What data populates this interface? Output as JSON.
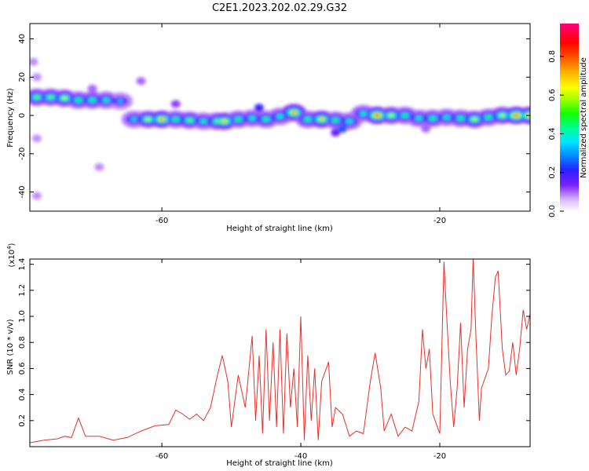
{
  "title": "C2E1.2023.202.02.29.G32",
  "chart_data": [
    {
      "type": "heatmap",
      "xlabel": "Height of straight line (km)",
      "ylabel": "Frequency (Hz)",
      "xlim": [
        -79,
        -7
      ],
      "ylim": [
        -50,
        48
      ],
      "xticks": [
        -60,
        -20
      ],
      "yticks": [
        -40,
        -20,
        0,
        20,
        40
      ],
      "colorbar": {
        "label": "Normalized spectral amplitude",
        "range": [
          0.0,
          0.97
        ],
        "ticks": [
          0.0,
          0.2,
          0.4,
          0.6,
          0.8
        ],
        "tick_labels": [
          "0.0",
          "0.2",
          "0.4",
          "0.6",
          "0.8"
        ]
      },
      "ridge": [
        {
          "x": -78,
          "freq": 9.5,
          "amp": 0.55
        },
        {
          "x": -76,
          "freq": 9.5,
          "amp": 0.55
        },
        {
          "x": -74,
          "freq": 9,
          "amp": 0.6
        },
        {
          "x": -72,
          "freq": 8,
          "amp": 0.5
        },
        {
          "x": -70,
          "freq": 8,
          "amp": 0.5
        },
        {
          "x": -68,
          "freq": 8,
          "amp": 0.45
        },
        {
          "x": -66,
          "freq": 7.5,
          "amp": 0.35
        },
        {
          "x": -64,
          "freq": -2,
          "amp": 0.4
        },
        {
          "x": -62,
          "freq": -2,
          "amp": 0.6
        },
        {
          "x": -60,
          "freq": -2,
          "amp": 0.75
        },
        {
          "x": -58,
          "freq": -2,
          "amp": 0.5
        },
        {
          "x": -56,
          "freq": -2.5,
          "amp": 0.55
        },
        {
          "x": -54,
          "freq": -3,
          "amp": 0.45
        },
        {
          "x": -52,
          "freq": -3,
          "amp": 0.55
        },
        {
          "x": -51,
          "freq": -3,
          "amp": 0.7
        },
        {
          "x": -49,
          "freq": -2,
          "amp": 0.5
        },
        {
          "x": -47,
          "freq": -1.5,
          "amp": 0.45
        },
        {
          "x": -45,
          "freq": -2,
          "amp": 0.5
        },
        {
          "x": -43,
          "freq": -0.5,
          "amp": 0.45
        },
        {
          "x": -41,
          "freq": 1.5,
          "amp": 0.75
        },
        {
          "x": -39,
          "freq": -2,
          "amp": 0.5
        },
        {
          "x": -37,
          "freq": -2,
          "amp": 0.7
        },
        {
          "x": -35,
          "freq": -2.5,
          "amp": 0.5
        },
        {
          "x": -33,
          "freq": -3,
          "amp": 0.45
        },
        {
          "x": -31,
          "freq": 1,
          "amp": 0.45
        },
        {
          "x": -29,
          "freq": 0,
          "amp": 0.85
        },
        {
          "x": -27,
          "freq": 0,
          "amp": 0.6
        },
        {
          "x": -25,
          "freq": 0,
          "amp": 0.5
        },
        {
          "x": -23,
          "freq": -1.5,
          "amp": 0.45
        },
        {
          "x": -21,
          "freq": -1.5,
          "amp": 0.5
        },
        {
          "x": -19,
          "freq": -1,
          "amp": 0.45
        },
        {
          "x": -17,
          "freq": -1.5,
          "amp": 0.5
        },
        {
          "x": -15,
          "freq": -2,
          "amp": 0.6
        },
        {
          "x": -13,
          "freq": -1,
          "amp": 0.5
        },
        {
          "x": -11,
          "freq": 0,
          "amp": 0.6
        },
        {
          "x": -9,
          "freq": 0,
          "amp": 0.85
        },
        {
          "x": -7,
          "freq": 0,
          "amp": 0.8
        }
      ],
      "blobs": [
        {
          "x": -78.5,
          "freq": 28,
          "amp": 0.08
        },
        {
          "x": -78,
          "freq": 20,
          "amp": 0.08
        },
        {
          "x": -70,
          "freq": 14,
          "amp": 0.1
        },
        {
          "x": -63,
          "freq": 18,
          "amp": 0.1
        },
        {
          "x": -78,
          "freq": -12,
          "amp": 0.08
        },
        {
          "x": -78,
          "freq": -42,
          "amp": 0.08
        },
        {
          "x": -69,
          "freq": -27,
          "amp": 0.08
        },
        {
          "x": -34,
          "freq": -7,
          "amp": 0.25
        },
        {
          "x": -35,
          "freq": -9,
          "amp": 0.15
        },
        {
          "x": -58,
          "freq": 6,
          "amp": 0.12
        },
        {
          "x": -46,
          "freq": 4,
          "amp": 0.2
        },
        {
          "x": -22,
          "freq": -7,
          "amp": 0.1
        }
      ]
    },
    {
      "type": "line",
      "xlabel": "Height of straight line (km)",
      "ylabel": "SNR (10 * v/v)",
      "y_multiplier": "(x10",
      "y_multiplier_exp": "4",
      "y_multiplier_close": ")",
      "xlim": [
        -79,
        -7
      ],
      "ylim": [
        0,
        1.44
      ],
      "xticks": [
        -60,
        -40,
        -20
      ],
      "yticks": [
        0.2,
        0.4,
        0.6,
        0.8,
        1.0,
        1.2,
        1.4
      ],
      "ytick_labels": [
        "0.2",
        "0.4",
        "0.6",
        "0.8",
        "1.0",
        "1.2",
        "1.4"
      ],
      "series": [
        {
          "color": "#e8302a",
          "points": [
            [
              -79,
              0.03
            ],
            [
              -77,
              0.05
            ],
            [
              -75,
              0.06
            ],
            [
              -74,
              0.08
            ],
            [
              -73,
              0.07
            ],
            [
              -72,
              0.22
            ],
            [
              -71,
              0.08
            ],
            [
              -69,
              0.08
            ],
            [
              -67,
              0.05
            ],
            [
              -65,
              0.07
            ],
            [
              -63,
              0.12
            ],
            [
              -61,
              0.16
            ],
            [
              -59,
              0.17
            ],
            [
              -58,
              0.28
            ],
            [
              -57,
              0.25
            ],
            [
              -56,
              0.21
            ],
            [
              -55,
              0.25
            ],
            [
              -54,
              0.2
            ],
            [
              -53,
              0.3
            ],
            [
              -52,
              0.55
            ],
            [
              -51.3,
              0.7
            ],
            [
              -50.5,
              0.5
            ],
            [
              -50,
              0.15
            ],
            [
              -49,
              0.55
            ],
            [
              -48,
              0.3
            ],
            [
              -47,
              0.85
            ],
            [
              -46.5,
              0.2
            ],
            [
              -46,
              0.7
            ],
            [
              -45.5,
              0.1
            ],
            [
              -45,
              0.9
            ],
            [
              -44.5,
              0.2
            ],
            [
              -44,
              0.8
            ],
            [
              -43.5,
              0.15
            ],
            [
              -43,
              0.9
            ],
            [
              -42.5,
              0.1
            ],
            [
              -42,
              0.87
            ],
            [
              -41.5,
              0.3
            ],
            [
              -41,
              0.6
            ],
            [
              -40.5,
              0.15
            ],
            [
              -40,
              1.0
            ],
            [
              -39.5,
              0.05
            ],
            [
              -39,
              0.7
            ],
            [
              -38.5,
              0.2
            ],
            [
              -38,
              0.6
            ],
            [
              -37.5,
              0.05
            ],
            [
              -37,
              0.5
            ],
            [
              -36,
              0.65
            ],
            [
              -35.5,
              0.15
            ],
            [
              -35,
              0.3
            ],
            [
              -34,
              0.25
            ],
            [
              -33,
              0.08
            ],
            [
              -32,
              0.12
            ],
            [
              -31,
              0.1
            ],
            [
              -30,
              0.5
            ],
            [
              -29.3,
              0.72
            ],
            [
              -28.5,
              0.45
            ],
            [
              -28,
              0.12
            ],
            [
              -27,
              0.25
            ],
            [
              -26,
              0.08
            ],
            [
              -25,
              0.15
            ],
            [
              -24,
              0.12
            ],
            [
              -23,
              0.35
            ],
            [
              -22.5,
              0.9
            ],
            [
              -22,
              0.6
            ],
            [
              -21.5,
              0.75
            ],
            [
              -21,
              0.25
            ],
            [
              -20,
              0.1
            ],
            [
              -19.8,
              0.55
            ],
            [
              -19.4,
              1.42
            ],
            [
              -19,
              1.0
            ],
            [
              -18.5,
              0.5
            ],
            [
              -18,
              0.15
            ],
            [
              -17.5,
              0.45
            ],
            [
              -17,
              0.95
            ],
            [
              -16.5,
              0.3
            ],
            [
              -16,
              0.75
            ],
            [
              -15.5,
              0.9
            ],
            [
              -15.2,
              1.45
            ],
            [
              -14.8,
              0.85
            ],
            [
              -14.3,
              0.2
            ],
            [
              -14,
              0.45
            ],
            [
              -13,
              0.6
            ],
            [
              -12.5,
              1.0
            ],
            [
              -12,
              1.3
            ],
            [
              -11.6,
              1.35
            ],
            [
              -11,
              0.75
            ],
            [
              -10.5,
              0.55
            ],
            [
              -10,
              0.58
            ],
            [
              -9.5,
              0.8
            ],
            [
              -9,
              0.55
            ],
            [
              -8.5,
              0.75
            ],
            [
              -8,
              1.05
            ],
            [
              -7.5,
              0.9
            ],
            [
              -7,
              1.02
            ]
          ]
        }
      ]
    }
  ]
}
